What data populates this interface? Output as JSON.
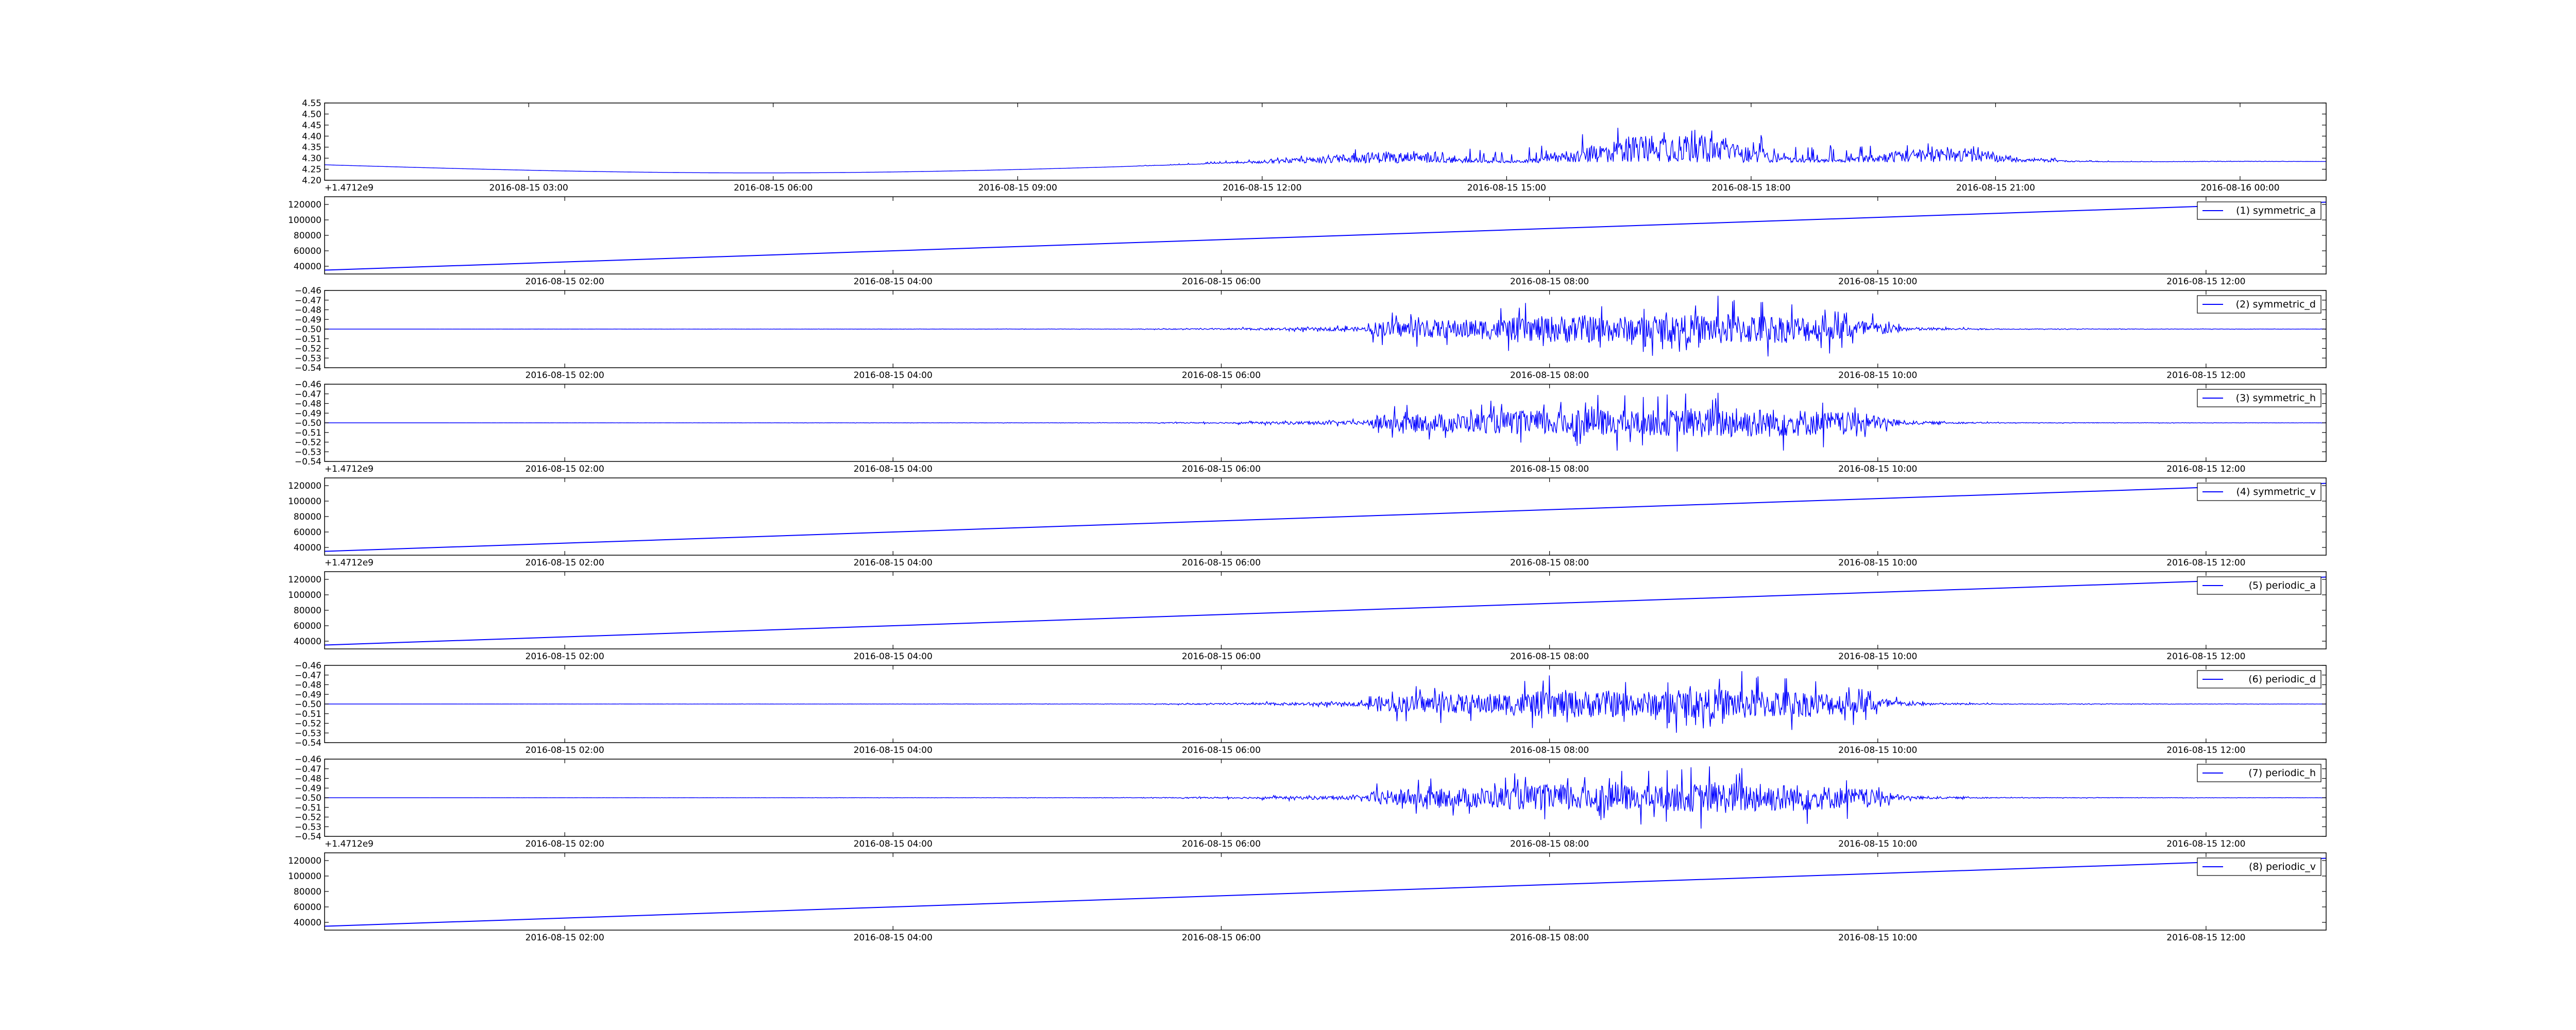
{
  "colors": {
    "line": "#0000ff",
    "axis": "#000000",
    "background": "#ffffff"
  },
  "chart_data": [
    {
      "id": "panel-1",
      "type": "line",
      "grid": false,
      "legend": null,
      "y_ticks": [
        "4.20",
        "4.25",
        "4.30",
        "4.35",
        "4.40",
        "4.45",
        "4.50",
        "4.55"
      ],
      "ylim": [
        4.2,
        4.55
      ],
      "x_ticks": [
        "2016-08-15 03:00",
        "2016-08-15 06:00",
        "2016-08-15 09:00",
        "2016-08-15 12:00",
        "2016-08-15 15:00",
        "2016-08-15 18:00",
        "2016-08-15 21:00",
        "2016-08-16 00:00"
      ],
      "x_offset_label": "+1.4712e9",
      "pattern": "daily",
      "base_start": 4.27,
      "base_end": 4.285,
      "envelope": [
        [
          0,
          0
        ],
        [
          0.4,
          0
        ],
        [
          0.44,
          0.08
        ],
        [
          0.5,
          0.22
        ],
        [
          0.55,
          0.52
        ],
        [
          0.62,
          0.78
        ],
        [
          0.7,
          1.0
        ],
        [
          0.76,
          0.85
        ],
        [
          0.8,
          0.5
        ],
        [
          0.85,
          0.15
        ],
        [
          0.9,
          0.04
        ],
        [
          1,
          0
        ]
      ]
    },
    {
      "id": "panel-2",
      "type": "line",
      "grid": false,
      "legend": "(1) symmetric_a",
      "y_ticks": [
        "40000",
        "60000",
        "80000",
        "100000",
        "120000"
      ],
      "ylim": [
        30000,
        130000
      ],
      "x_ticks": [
        "2016-08-15 02:00",
        "2016-08-15 04:00",
        "2016-08-15 06:00",
        "2016-08-15 08:00",
        "2016-08-15 10:00",
        "2016-08-15 12:00"
      ],
      "x_offset_label": "",
      "pattern": "linear",
      "start": 35000,
      "end": 123000
    },
    {
      "id": "panel-3",
      "type": "line",
      "grid": false,
      "legend": "(2) symmetric_d",
      "y_ticks": [
        "−0.54",
        "−0.53",
        "−0.52",
        "−0.51",
        "−0.50",
        "−0.49",
        "−0.48",
        "−0.47",
        "−0.46"
      ],
      "ylim": [
        -0.54,
        -0.46
      ],
      "x_ticks": [
        "2016-08-15 02:00",
        "2016-08-15 04:00",
        "2016-08-15 06:00",
        "2016-08-15 08:00",
        "2016-08-15 10:00",
        "2016-08-15 12:00"
      ],
      "x_offset_label": "",
      "pattern": "burst",
      "center": -0.5
    },
    {
      "id": "panel-4",
      "type": "line",
      "grid": false,
      "legend": "(3) symmetric_h",
      "y_ticks": [
        "−0.54",
        "−0.53",
        "−0.52",
        "−0.51",
        "−0.50",
        "−0.49",
        "−0.48",
        "−0.47",
        "−0.46"
      ],
      "ylim": [
        -0.54,
        -0.46
      ],
      "x_ticks": [
        "2016-08-15 02:00",
        "2016-08-15 04:00",
        "2016-08-15 06:00",
        "2016-08-15 08:00",
        "2016-08-15 10:00",
        "2016-08-15 12:00"
      ],
      "x_offset_label": "+1.4712e9",
      "pattern": "burst",
      "center": -0.5
    },
    {
      "id": "panel-5",
      "type": "line",
      "grid": false,
      "legend": "(4) symmetric_v",
      "y_ticks": [
        "40000",
        "60000",
        "80000",
        "100000",
        "120000"
      ],
      "ylim": [
        30000,
        130000
      ],
      "x_ticks": [
        "2016-08-15 02:00",
        "2016-08-15 04:00",
        "2016-08-15 06:00",
        "2016-08-15 08:00",
        "2016-08-15 10:00",
        "2016-08-15 12:00"
      ],
      "x_offset_label": "+1.4712e9",
      "pattern": "linear",
      "start": 35000,
      "end": 123000
    },
    {
      "id": "panel-6",
      "type": "line",
      "grid": false,
      "legend": "(5) periodic_a",
      "y_ticks": [
        "40000",
        "60000",
        "80000",
        "100000",
        "120000"
      ],
      "ylim": [
        30000,
        130000
      ],
      "x_ticks": [
        "2016-08-15 02:00",
        "2016-08-15 04:00",
        "2016-08-15 06:00",
        "2016-08-15 08:00",
        "2016-08-15 10:00",
        "2016-08-15 12:00"
      ],
      "x_offset_label": "",
      "pattern": "linear",
      "start": 35000,
      "end": 123000
    },
    {
      "id": "panel-7",
      "type": "line",
      "grid": false,
      "legend": "(6) periodic_d",
      "y_ticks": [
        "−0.54",
        "−0.53",
        "−0.52",
        "−0.51",
        "−0.50",
        "−0.49",
        "−0.48",
        "−0.47",
        "−0.46"
      ],
      "ylim": [
        -0.54,
        -0.46
      ],
      "x_ticks": [
        "2016-08-15 02:00",
        "2016-08-15 04:00",
        "2016-08-15 06:00",
        "2016-08-15 08:00",
        "2016-08-15 10:00",
        "2016-08-15 12:00"
      ],
      "x_offset_label": "",
      "pattern": "burst",
      "center": -0.5
    },
    {
      "id": "panel-8",
      "type": "line",
      "grid": false,
      "legend": "(7) periodic_h",
      "y_ticks": [
        "−0.54",
        "−0.53",
        "−0.52",
        "−0.51",
        "−0.50",
        "−0.49",
        "−0.48",
        "−0.47",
        "−0.46"
      ],
      "ylim": [
        -0.54,
        -0.46
      ],
      "x_ticks": [
        "2016-08-15 02:00",
        "2016-08-15 04:00",
        "2016-08-15 06:00",
        "2016-08-15 08:00",
        "2016-08-15 10:00",
        "2016-08-15 12:00"
      ],
      "x_offset_label": "+1.4712e9",
      "pattern": "burst",
      "center": -0.5
    },
    {
      "id": "panel-9",
      "type": "line",
      "grid": false,
      "legend": "(8) periodic_v",
      "y_ticks": [
        "40000",
        "60000",
        "80000",
        "100000",
        "120000"
      ],
      "ylim": [
        30000,
        130000
      ],
      "x_ticks": [
        "2016-08-15 02:00",
        "2016-08-15 04:00",
        "2016-08-15 06:00",
        "2016-08-15 08:00",
        "2016-08-15 10:00",
        "2016-08-15 12:00"
      ],
      "x_offset_label": "",
      "pattern": "linear",
      "start": 35000,
      "end": 123000
    }
  ]
}
